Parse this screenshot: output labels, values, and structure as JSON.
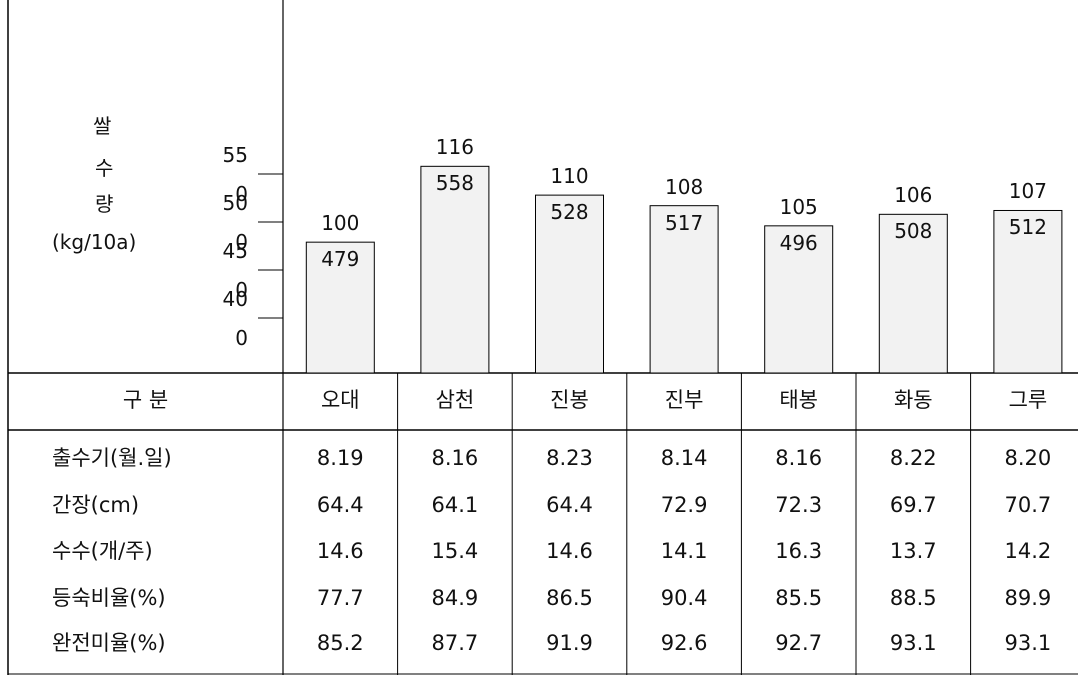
{
  "chart_data": {
    "type": "bar",
    "ylabel_lines": [
      "쌀",
      "수",
      "량",
      "(kg/10a)"
    ],
    "yticks": [
      {
        "value": 550,
        "label_lines": [
          "55",
          "0"
        ]
      },
      {
        "value": 500,
        "label_lines": [
          "50",
          "0"
        ]
      },
      {
        "value": 450,
        "label_lines": [
          "45",
          "0"
        ]
      },
      {
        "value": 400,
        "label_lines": [
          "40",
          "0"
        ]
      }
    ],
    "ylim": [
      380,
      570
    ],
    "categories": [
      "오대",
      "삼천",
      "진봉",
      "진부",
      "태봉",
      "화동",
      "그루"
    ],
    "values": [
      479,
      558,
      528,
      517,
      496,
      508,
      512
    ],
    "relative_index": [
      "100",
      "116",
      "110",
      "108",
      "105",
      "106",
      "107"
    ]
  },
  "table": {
    "header_label": "구    분",
    "rows": [
      {
        "label": "출수기(월.일)",
        "values": [
          "8.19",
          "8.16",
          "8.23",
          "8.14",
          "8.16",
          "8.22",
          "8.20"
        ]
      },
      {
        "label": "간장(cm)",
        "values": [
          "64.4",
          "64.1",
          "64.4",
          "72.9",
          "72.3",
          "69.7",
          "70.7"
        ]
      },
      {
        "label": "수수(개/주)",
        "values": [
          "14.6",
          "15.4",
          "14.6",
          "14.1",
          "16.3",
          "13.7",
          "14.2"
        ]
      },
      {
        "label": "등숙비율(%)",
        "values": [
          "77.7",
          "84.9",
          "86.5",
          "90.4",
          "85.5",
          "88.5",
          "89.9"
        ]
      },
      {
        "label": "완전미율(%)",
        "values": [
          "85.2",
          "87.7",
          "91.9",
          "92.6",
          "92.7",
          "93.1",
          "93.1"
        ]
      }
    ]
  }
}
